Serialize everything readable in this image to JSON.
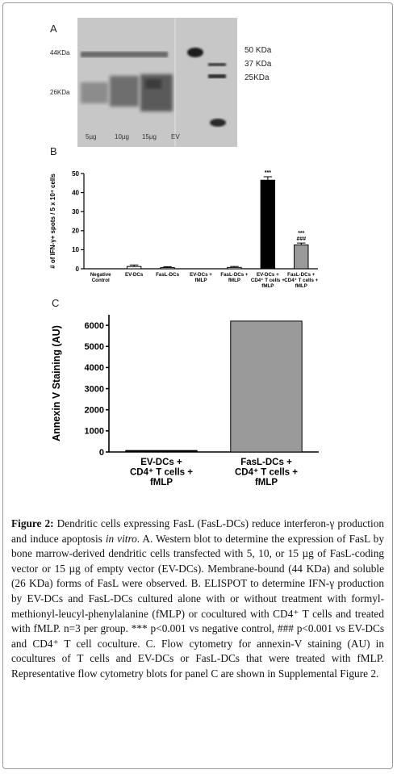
{
  "panels": {
    "a_letter": "A",
    "b_letter": "B",
    "c_letter": "C"
  },
  "blot": {
    "left_labels": [
      "44KDa",
      "26KDa"
    ],
    "right_labels": [
      "50 KDa",
      "37 KDa",
      "25KDa"
    ],
    "lane_labels": [
      "5µg",
      "10µg",
      "15µg",
      "EV"
    ]
  },
  "chart_data": [
    {
      "type": "bar",
      "ylabel": "# of IFN-γ+ spots / 5 x 10⁴ cells",
      "ylim": [
        0,
        50
      ],
      "yticks": [
        "0",
        "10",
        "20",
        "30",
        "40",
        "50"
      ],
      "categories": [
        [
          "Negative",
          "Control"
        ],
        [
          "EV-DCs"
        ],
        [
          "FasL-DCs"
        ],
        [
          "EV-DCs +",
          "fMLP"
        ],
        [
          "FasL-DCs +",
          "fMLP"
        ],
        [
          "EV-DCs +",
          "CD4⁺ T cells +",
          "fMLP"
        ],
        [
          "FasL-DCs +",
          "CD4⁺ T cells +",
          "fMLP"
        ]
      ],
      "values": [
        0,
        1.2,
        0.6,
        0,
        0.7,
        46.5,
        12.5
      ],
      "errors": [
        0,
        0.8,
        0.5,
        0,
        0.5,
        1.8,
        1.0
      ],
      "bar_colors": [
        "#ffffff",
        "#ffffff",
        "#ffffff",
        "#ffffff",
        "#ffffff",
        "#000000",
        "#9a9a9a"
      ],
      "annotations": [
        {
          "index": 5,
          "lines": [
            "***"
          ]
        },
        {
          "index": 6,
          "lines": [
            "***",
            "###"
          ]
        }
      ]
    },
    {
      "type": "bar",
      "ylabel": "Annexin V Staining (AU)",
      "ylim": [
        0,
        6500
      ],
      "yticks": [
        "0",
        "1000",
        "2000",
        "3000",
        "4000",
        "5000",
        "6000"
      ],
      "categories": [
        [
          "EV-DCs +",
          "CD4⁺ T cells +",
          "fMLP"
        ],
        [
          "FasL-DCs +",
          "CD4⁺ T cells +",
          "fMLP"
        ]
      ],
      "values": [
        70,
        6200
      ],
      "bar_colors": [
        "#000000",
        "#9a9a9a"
      ]
    }
  ],
  "caption": {
    "figure_label": "Figure 2:",
    "text_1": " Dendritic cells expressing FasL (FasL-DCs) reduce interferon-γ production and induce apoptosis ",
    "italic_1": "in vitro",
    "text_2": ". A. Western blot to determine the expression of FasL by bone marrow-derived dendritic cells transfected with 5, 10, or 15 µg of FasL-coding vector or 15 µg of empty vector (EV-DCs). Membrane-bound (44 KDa) and soluble (26 KDa) forms of FasL were observed. B. ELISPOT to determine IFN-γ production by EV-DCs and FasL-DCs cultured alone with or without treatment with formyl-methionyl-leucyl-phenylalanine (fMLP) or cocultured with CD4⁺ T cells and treated with fMLP. n=3 per group. *** p<0.001 vs negative control, ### p<0.001 vs EV-DCs and CD4⁺ T cell coculture. C. Flow cytometry for annexin-V staining (AU) in cocultures of T cells and EV-DCs or FasL-DCs that were treated with fMLP. Representative flow cytometry blots for panel C are shown in Supplemental Figure 2."
  }
}
